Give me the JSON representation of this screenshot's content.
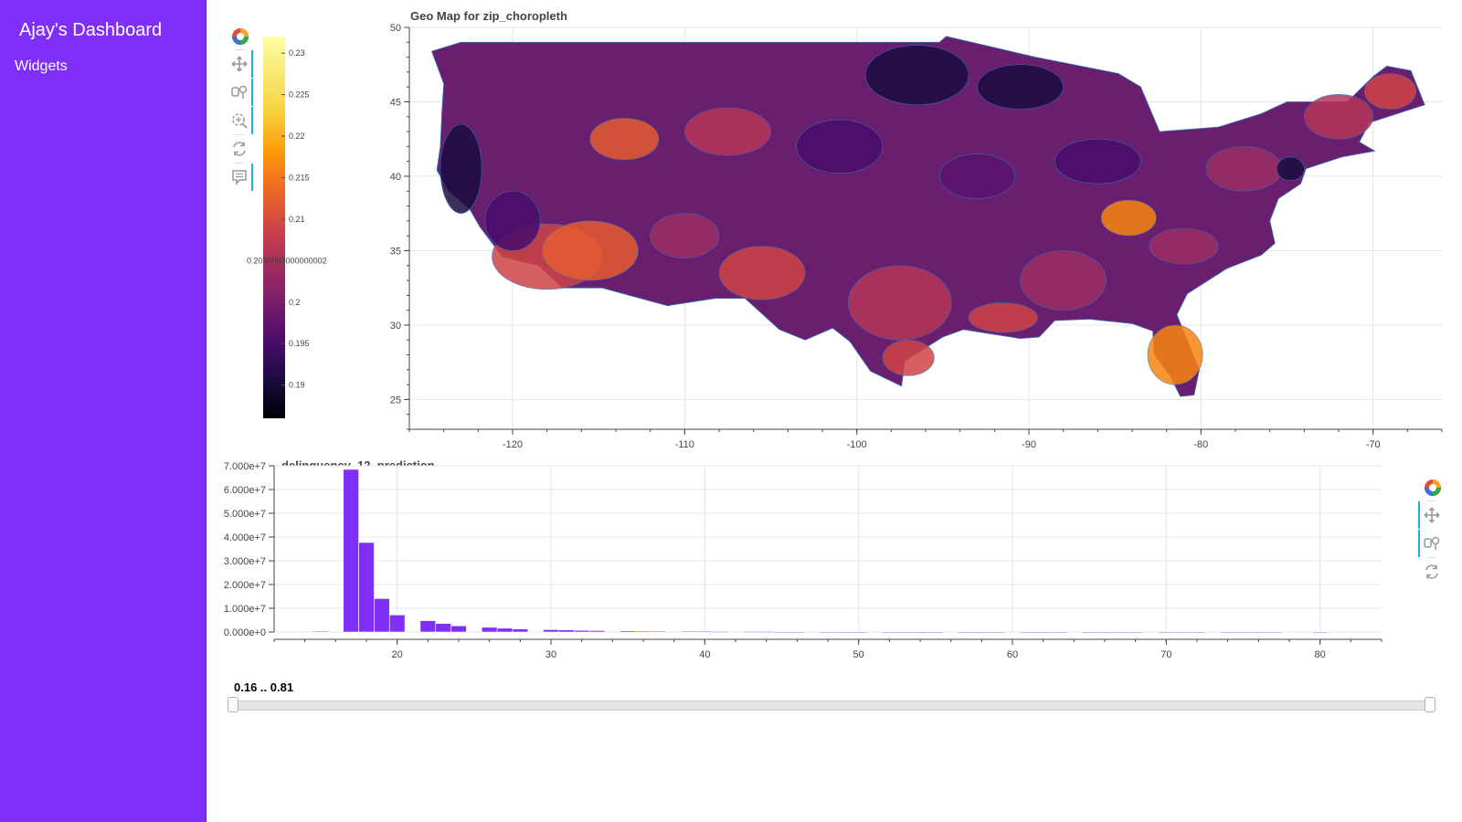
{
  "sidebar": {
    "title": "Ajay's Dashboard",
    "items": [
      {
        "label": "Widgets"
      }
    ]
  },
  "colorbar": {
    "ticks": [
      "0.23",
      "0.225",
      "0.22",
      "0.215",
      "0.21",
      "0.2050000000000002",
      "0.2",
      "0.195",
      "0.19"
    ],
    "tick_values": [
      0.23,
      0.225,
      0.22,
      0.215,
      0.21,
      0.205,
      0.2,
      0.195,
      0.19
    ],
    "range": [
      0.186,
      0.232
    ],
    "palette": "inferno"
  },
  "map": {
    "title": "Geo Map for zip_choropleth",
    "x_ticks": [
      "-120",
      "-110",
      "-100",
      "-90",
      "-80",
      "-70"
    ],
    "x_values": [
      -120,
      -110,
      -100,
      -90,
      -80,
      -70
    ],
    "y_ticks": [
      "50",
      "45",
      "40",
      "35",
      "30",
      "25"
    ],
    "y_values": [
      50,
      45,
      40,
      35,
      30,
      25
    ],
    "xlim": [
      -126,
      -66
    ],
    "ylim": [
      23,
      50
    ]
  },
  "map_toolbar": {
    "tools": [
      "bokeh-logo-icon",
      "pan-icon",
      "box-zoom-icon",
      "wheel-zoom-icon",
      "reset-icon",
      "hover-icon"
    ]
  },
  "hist_toolbar": {
    "tools": [
      "bokeh-logo-icon",
      "pan-icon",
      "box-zoom-icon",
      "reset-icon"
    ]
  },
  "chart_data": {
    "type": "bar",
    "title": "delinquency_12_prediction",
    "xlabel": "",
    "ylabel": "",
    "ylim": [
      0,
      70000000
    ],
    "xlim": [
      12,
      84
    ],
    "y_ticks": [
      "7.000e+7",
      "6.000e+7",
      "5.000e+7",
      "4.000e+7",
      "3.000e+7",
      "2.000e+7",
      "1.000e+7",
      "0.000e+0"
    ],
    "y_tick_values": [
      70000000,
      60000000,
      50000000,
      40000000,
      30000000,
      20000000,
      10000000,
      0
    ],
    "x_ticks": [
      "20",
      "30",
      "40",
      "50",
      "60",
      "70",
      "80"
    ],
    "x_tick_values": [
      20,
      30,
      40,
      50,
      60,
      70,
      80
    ],
    "bin_width": 1,
    "x": [
      15,
      17,
      18,
      19,
      20,
      22,
      23,
      24,
      26,
      27,
      28,
      30,
      31,
      32,
      33,
      35,
      36,
      37,
      39,
      40,
      41,
      43,
      44,
      45,
      46,
      48,
      49,
      50,
      52,
      53,
      54,
      55,
      57,
      58,
      59,
      61,
      62,
      63,
      65,
      66,
      67,
      68,
      70,
      71,
      72,
      74,
      75,
      76,
      77,
      80
    ],
    "values": [
      300000,
      68500000,
      37700000,
      14100000,
      7200000,
      4800000,
      3600000,
      2600000,
      2000000,
      1600000,
      1300000,
      1000000,
      900000,
      700000,
      600000,
      500000,
      400000,
      300000,
      300000,
      250000,
      200000,
      200000,
      200000,
      150000,
      150000,
      150000,
      120000,
      120000,
      100000,
      100000,
      100000,
      90000,
      90000,
      80000,
      80000,
      80000,
      70000,
      70000,
      70000,
      60000,
      60000,
      60000,
      50000,
      50000,
      50000,
      50000,
      50000,
      40000,
      40000,
      40000
    ],
    "color": "#7f2ff7"
  },
  "range_slider": {
    "label": "0.16 .. 0.81",
    "start": 0.16,
    "end": 0.81
  }
}
